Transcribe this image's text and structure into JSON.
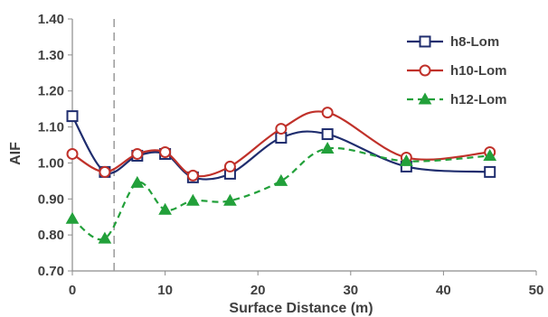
{
  "chart_data": {
    "type": "line",
    "title": "",
    "xlabel": "Surface Distance (m)",
    "ylabel": "AIF",
    "xlim": [
      0,
      50
    ],
    "ylim": [
      0.7,
      1.4
    ],
    "x_ticks": [
      0,
      10,
      20,
      30,
      40,
      50
    ],
    "y_ticks": [
      "0.70",
      "0.80",
      "0.90",
      "1.00",
      "1.10",
      "1.20",
      "1.30",
      "1.40"
    ],
    "grid": false,
    "legend_position": "top-right",
    "reference_line_x": 4.5,
    "series": [
      {
        "name": "h8-Lom",
        "color": "#1f2d6e",
        "marker": "square",
        "line_style": "solid",
        "x": [
          0,
          3.5,
          7,
          10,
          13,
          17,
          22.5,
          27.5,
          36,
          45
        ],
        "y": [
          1.13,
          0.975,
          1.02,
          1.025,
          0.96,
          0.97,
          1.07,
          1.08,
          0.99,
          0.975
        ]
      },
      {
        "name": "h10-Lom",
        "color": "#c0312a",
        "marker": "circle",
        "line_style": "solid",
        "x": [
          0,
          3.5,
          7,
          10,
          13,
          17,
          22.5,
          27.5,
          36,
          45
        ],
        "y": [
          1.025,
          0.975,
          1.025,
          1.03,
          0.965,
          0.99,
          1.095,
          1.14,
          1.015,
          1.03
        ]
      },
      {
        "name": "h12-Lom",
        "color": "#22a03a",
        "marker": "triangle",
        "line_style": "dashed",
        "x": [
          0,
          3.5,
          7,
          10,
          13,
          17,
          22.5,
          27.5,
          36,
          45
        ],
        "y": [
          0.845,
          0.79,
          0.945,
          0.87,
          0.895,
          0.895,
          0.95,
          1.04,
          1.005,
          1.02
        ]
      }
    ]
  }
}
